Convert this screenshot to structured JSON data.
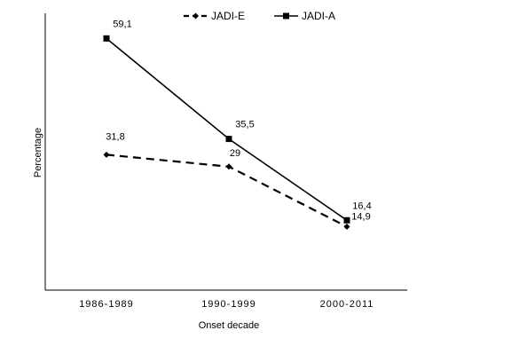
{
  "chart_data": {
    "type": "line",
    "title": "",
    "xlabel": "Onset decade",
    "ylabel": "Percentage",
    "categories": [
      "1986-1989",
      "1990-1999",
      "2000-2011"
    ],
    "ylim": [
      0,
      65
    ],
    "grid": false,
    "legend_position": "top-center",
    "series": [
      {
        "name": "JADI-E",
        "values": [
          31.8,
          29,
          14.9
        ],
        "labels": [
          "31,8",
          "29",
          "14,9"
        ],
        "line_style": "dashed",
        "marker": "diamond",
        "color": "#000000"
      },
      {
        "name": "JADI-A",
        "values": [
          59.1,
          35.5,
          16.4
        ],
        "labels": [
          "59,1",
          "35,5",
          "16,4"
        ],
        "line_style": "solid",
        "marker": "square",
        "color": "#000000"
      }
    ]
  }
}
